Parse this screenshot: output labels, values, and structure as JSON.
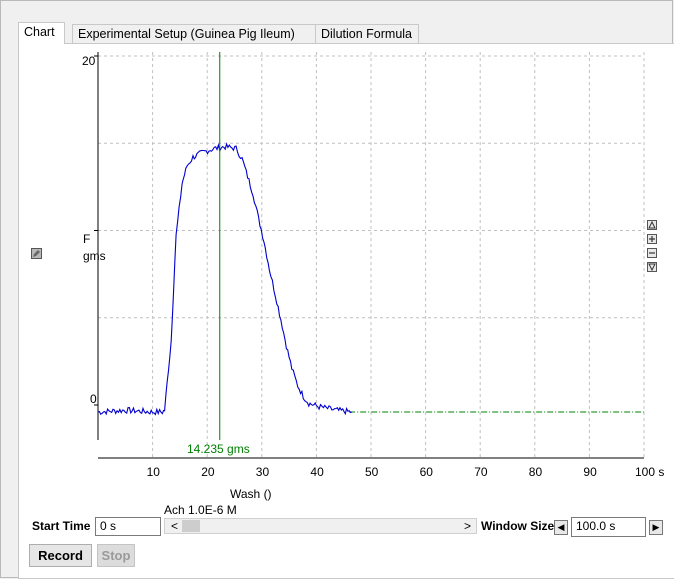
{
  "tabs": [
    {
      "label": "Chart",
      "active": true
    },
    {
      "label": "Experimental Setup (Guinea Pig Ileum)",
      "active": false
    },
    {
      "label": "Dilution Formula",
      "active": false
    }
  ],
  "chart": {
    "y_label_line1": "F",
    "y_label_line2": "gms",
    "y_top_tick": "20",
    "y_zero_tick": "0",
    "x_ticks": [
      "10",
      "20",
      "30",
      "40",
      "50",
      "60",
      "70",
      "80",
      "90",
      "100 s"
    ],
    "cursor_readout": "14.235 gms",
    "event_label": "Wash ()",
    "marker_label": "Ach 1.0E-6 M",
    "colors": {
      "trace": "#0000cc",
      "cursor": "#008000",
      "baseline": "#008000",
      "grid": "#c0c0c0"
    }
  },
  "chart_data": {
    "type": "line",
    "xlabel": "",
    "ylabel": "F gms",
    "xlim": [
      0,
      100
    ],
    "ylim": [
      -4,
      20
    ],
    "grid": true,
    "cursor": {
      "x": 22.3,
      "value": "14.235 gms"
    },
    "series": [
      {
        "name": "",
        "x": [
          0,
          5,
          10,
          11.8,
          12.2,
          13.4,
          14.3,
          15.4,
          16.3,
          17.4,
          19.3,
          21.3,
          23.3,
          25.3,
          26.4,
          27.4,
          28.4,
          29.4,
          30.4,
          31.4,
          32.5,
          33.5,
          34.5,
          35.5,
          36.6,
          37.6,
          38.6,
          40.5,
          43.6,
          46.5
        ],
        "y": [
          -0.4,
          -0.3,
          -0.4,
          -0.4,
          -0.3,
          3.7,
          9.7,
          12.7,
          13.7,
          14.2,
          14.5,
          14.7,
          14.8,
          14.7,
          14.1,
          13.1,
          12.1,
          10.7,
          9.4,
          7.8,
          6.3,
          4.9,
          3.4,
          2.1,
          1.1,
          0.5,
          0.1,
          -0.1,
          -0.3,
          -0.4
        ]
      }
    ]
  },
  "icons": {
    "side_toggle": "pencil-icon",
    "zoom_up": "triangle-up-icon",
    "zoom_in": "plus-icon",
    "zoom_out": "minus-icon",
    "zoom_down": "triangle-down-icon"
  },
  "controls": {
    "start_time_label": "Start Time",
    "start_time_value": "0 s",
    "window_size_label": "Window Size",
    "window_size_value": "100.0 s",
    "record_label": "Record",
    "stop_label": "Stop",
    "scroll_left": "<",
    "scroll_right": ">",
    "win_left": "◀",
    "win_right": "▶"
  }
}
